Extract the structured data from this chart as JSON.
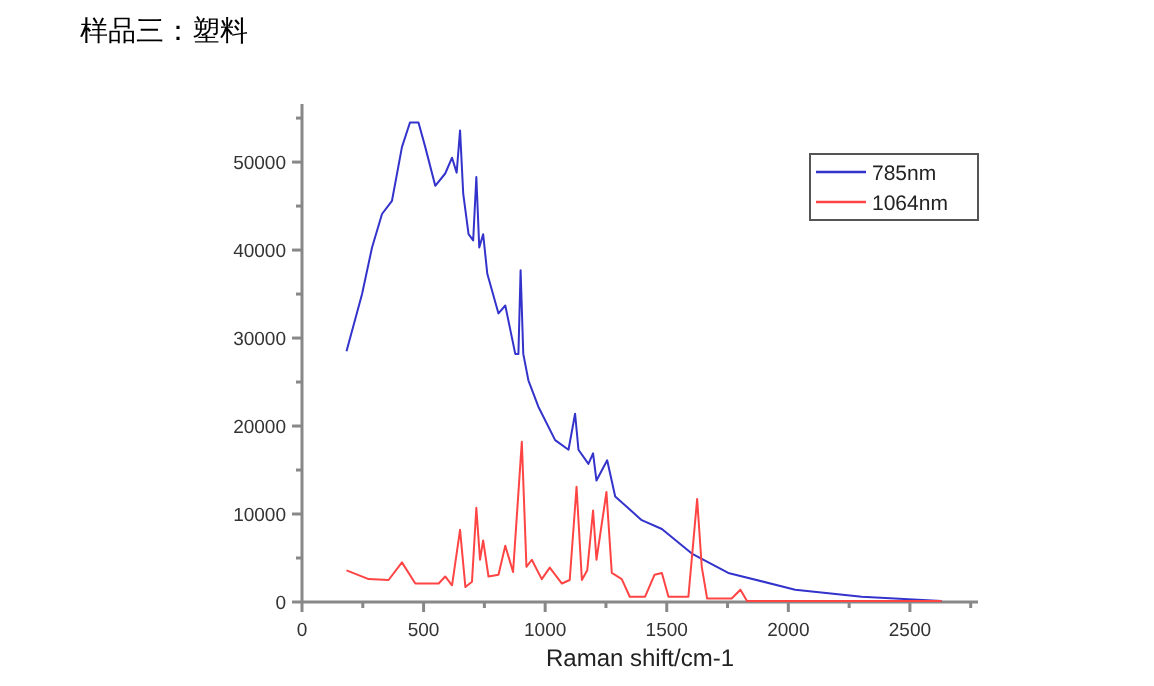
{
  "chart_data": {
    "type": "line",
    "title": "样品三：塑料",
    "xlabel": "Raman shift/cm-1",
    "xlim": [
      0,
      2780
    ],
    "ylim": [
      0,
      56600
    ],
    "xticks": [
      0,
      {
        "value": 250,
        "label": null
      },
      500,
      {
        "value": 750,
        "label": null
      },
      1000,
      {
        "value": 1250,
        "label": null
      },
      1500,
      {
        "value": 1750,
        "label": null
      },
      2000,
      {
        "value": 2250,
        "label": null
      },
      2500,
      {
        "value": 2750,
        "label": null
      }
    ],
    "yticks": [
      0,
      {
        "value": 5000,
        "label": null
      },
      10000,
      {
        "value": 15000,
        "label": null
      },
      20000,
      {
        "value": 25000,
        "label": null
      },
      30000,
      {
        "value": 35000,
        "label": null
      },
      40000,
      {
        "value": 45000,
        "label": null
      },
      50000,
      {
        "value": 55000,
        "label": null
      }
    ],
    "legend": "top right",
    "grid": false,
    "marker": "none",
    "line_style": "solid",
    "series": [
      {
        "name": "785nm",
        "color": "#3333cc",
        "x": [
          183,
          247,
          288,
          329,
          370,
          411,
          444,
          479,
          507,
          548,
          589,
          617,
          636,
          650,
          663,
          685,
          704,
          717,
          729,
          745,
          762,
          808,
          836,
          877,
          890,
          899,
          910,
          931,
          972,
          1041,
          1096,
          1123,
          1137,
          1178,
          1197,
          1211,
          1255,
          1288,
          1397,
          1480,
          1603,
          1753,
          2028,
          2302,
          2630
        ],
        "values": [
          28500,
          35000,
          40300,
          44100,
          45600,
          51700,
          54500,
          54500,
          51700,
          47300,
          48700,
          50500,
          48800,
          53600,
          46400,
          41800,
          41100,
          48300,
          40300,
          41800,
          37300,
          32800,
          33700,
          28200,
          28200,
          37700,
          28200,
          25200,
          22200,
          18400,
          17300,
          21400,
          17300,
          15700,
          16900,
          13800,
          16100,
          12000,
          9300,
          8300,
          5500,
          3300,
          1400,
          600,
          100
        ]
      },
      {
        "name": "1064nm",
        "color": "#ff4444",
        "x": [
          183,
          274,
          356,
          411,
          466,
          562,
          589,
          617,
          650,
          672,
          699,
          717,
          732,
          745,
          767,
          808,
          836,
          868,
          904,
          923,
          945,
          986,
          1019,
          1069,
          1101,
          1129,
          1151,
          1173,
          1197,
          1211,
          1252,
          1274,
          1315,
          1348,
          1411,
          1450,
          1480,
          1507,
          1589,
          1625,
          1644,
          1666,
          1767,
          1803,
          1830,
          2630
        ],
        "values": [
          3600,
          2600,
          2500,
          4500,
          2100,
          2100,
          2900,
          1900,
          8200,
          1700,
          2300,
          10700,
          4800,
          7000,
          2900,
          3100,
          6400,
          3400,
          18200,
          4000,
          4800,
          2600,
          3900,
          2100,
          2500,
          13100,
          2500,
          3600,
          10400,
          4800,
          12500,
          3300,
          2600,
          600,
          600,
          3100,
          3300,
          600,
          600,
          11700,
          4000,
          400,
          400,
          1400,
          100,
          100
        ]
      }
    ]
  }
}
